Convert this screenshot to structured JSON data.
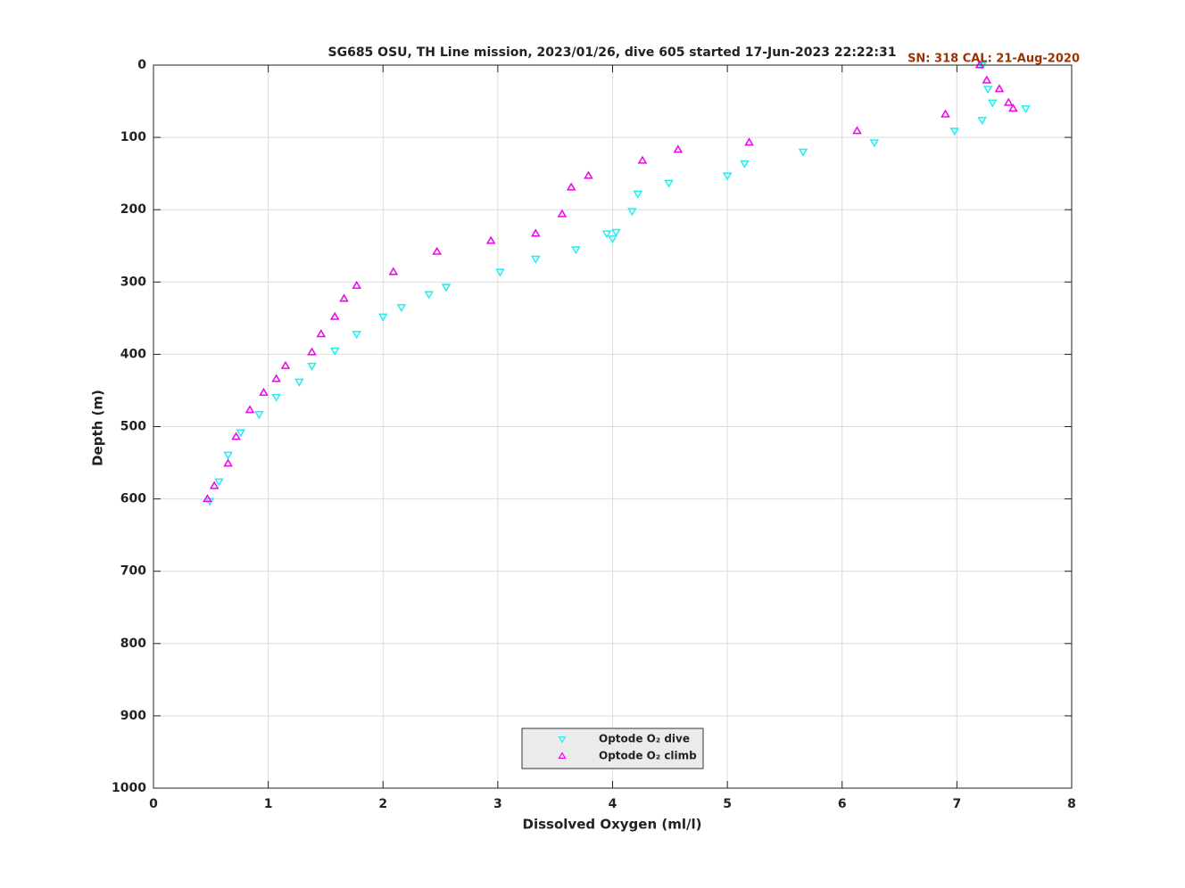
{
  "chart_data": {
    "type": "scatter",
    "title": "SG685 OSU, TH Line mission, 2023/01/26, dive 605 started 17-Jun-2023 22:22:31",
    "annotation": "SN: 318  CAL: 21-Aug-2020",
    "x_label": "Dissolved Oxygen (ml/l)",
    "y_label": "Depth (m)",
    "xlim": [
      0,
      8
    ],
    "xticks": [
      0,
      1,
      2,
      3,
      4,
      5,
      6,
      7,
      8
    ],
    "ylim": [
      0,
      1000
    ],
    "yticks": [
      0,
      100,
      200,
      300,
      400,
      500,
      600,
      700,
      800,
      900,
      1000
    ],
    "y_reversed": true,
    "grid": true,
    "legend": "bottom",
    "series": [
      {
        "name": "Optode O₂ dive",
        "color": "#22eeee",
        "marker": "triangle-down",
        "x": [
          7.22,
          7.27,
          7.31,
          7.6,
          7.22,
          6.98,
          6.28,
          5.66,
          5.15,
          5.0,
          4.49,
          4.22,
          4.17,
          4.03,
          3.95,
          4.0,
          3.68,
          3.33,
          3.02,
          2.55,
          2.4,
          2.16,
          2.0,
          1.77,
          1.58,
          1.38,
          1.27,
          1.07,
          0.92,
          0.76,
          0.65,
          0.57,
          0.49
        ],
        "values": [
          0,
          33,
          52,
          60,
          76,
          91,
          107,
          120,
          136,
          153,
          163,
          178,
          202,
          231,
          233,
          240,
          255,
          268,
          286,
          307,
          317,
          335,
          348,
          372,
          395,
          416,
          438,
          459,
          483,
          508,
          539,
          576,
          603
        ]
      },
      {
        "name": "Optode O₂ climb",
        "color": "#ee00ee",
        "marker": "triangle-up",
        "x": [
          7.2,
          7.26,
          7.37,
          7.45,
          7.49,
          6.9,
          6.13,
          5.19,
          4.57,
          4.26,
          3.79,
          3.64,
          3.56,
          3.33,
          2.94,
          2.47,
          2.09,
          1.77,
          1.66,
          1.58,
          1.46,
          1.38,
          1.15,
          1.07,
          0.96,
          0.84,
          0.72,
          0.65,
          0.53,
          0.47
        ],
        "values": [
          0,
          21,
          33,
          52,
          60,
          68,
          91,
          107,
          117,
          132,
          153,
          169,
          206,
          233,
          243,
          258,
          286,
          305,
          323,
          348,
          372,
          397,
          416,
          434,
          453,
          477,
          514,
          551,
          582,
          600
        ]
      }
    ]
  }
}
